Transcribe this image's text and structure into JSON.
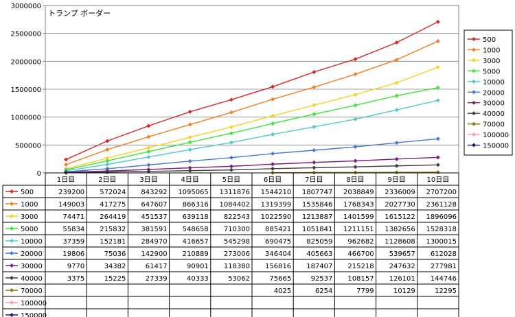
{
  "chart_data": {
    "type": "line",
    "title": "トランプ ボーダー",
    "xlabel": "",
    "ylabel": "",
    "ylim": [
      0,
      3000000
    ],
    "yticks": [
      "0",
      "500000",
      "1000000",
      "1500000",
      "2000000",
      "2500000",
      "3000000"
    ],
    "ytick_values": [
      0,
      500000,
      1000000,
      1500000,
      2000000,
      2500000,
      3000000
    ],
    "grid": true,
    "legend_position": "right",
    "categories": [
      "1日目",
      "2日目",
      "3日目",
      "4日目",
      "5日目",
      "6日目",
      "7日目",
      "8日目",
      "9日目",
      "10日目"
    ],
    "series": [
      {
        "name": "500",
        "color": "#d42a2a",
        "values": [
          239200,
          572024,
          843292,
          1095065,
          1311876,
          1544210,
          1807747,
          2038849,
          2336009,
          2707200
        ]
      },
      {
        "name": "1000",
        "color": "#f07f2a",
        "values": [
          149003,
          417275,
          647607,
          866316,
          1084402,
          1319399,
          1535846,
          1768343,
          2027730,
          2361128
        ]
      },
      {
        "name": "3000",
        "color": "#f5d22a",
        "values": [
          74471,
          264419,
          451537,
          639118,
          822543,
          1022590,
          1213887,
          1401599,
          1615122,
          1896096
        ]
      },
      {
        "name": "5000",
        "color": "#3de33d",
        "values": [
          55834,
          215832,
          381591,
          548658,
          710300,
          885421,
          1051841,
          1211151,
          1382656,
          1528318
        ]
      },
      {
        "name": "10000",
        "color": "#52c6cc",
        "values": [
          37359,
          152181,
          284970,
          416657,
          545298,
          690475,
          825059,
          962682,
          1128608,
          1300015
        ]
      },
      {
        "name": "20000",
        "color": "#4a76cc",
        "values": [
          19806,
          75036,
          142900,
          210889,
          273006,
          346404,
          405663,
          466700,
          539657,
          612028
        ]
      },
      {
        "name": "30000",
        "color": "#7a1f7a",
        "values": [
          9770,
          34382,
          61417,
          90901,
          118380,
          156816,
          187407,
          215218,
          247632,
          277981
        ]
      },
      {
        "name": "40000",
        "color": "#3f3f3f",
        "values": [
          3375,
          15225,
          27339,
          40333,
          53062,
          75665,
          92537,
          108157,
          126101,
          144746
        ]
      },
      {
        "name": "70000",
        "color": "#8a7a10",
        "values": [
          null,
          null,
          null,
          null,
          null,
          4025,
          6254,
          7799,
          10129,
          12295
        ]
      },
      {
        "name": "100000",
        "color": "#f0a0a0",
        "values": [
          null,
          null,
          null,
          null,
          null,
          null,
          null,
          null,
          null,
          null
        ]
      },
      {
        "name": "150000",
        "color": "#1a1a6e",
        "values": [
          null,
          null,
          null,
          null,
          null,
          null,
          null,
          null,
          null,
          null
        ]
      }
    ]
  }
}
